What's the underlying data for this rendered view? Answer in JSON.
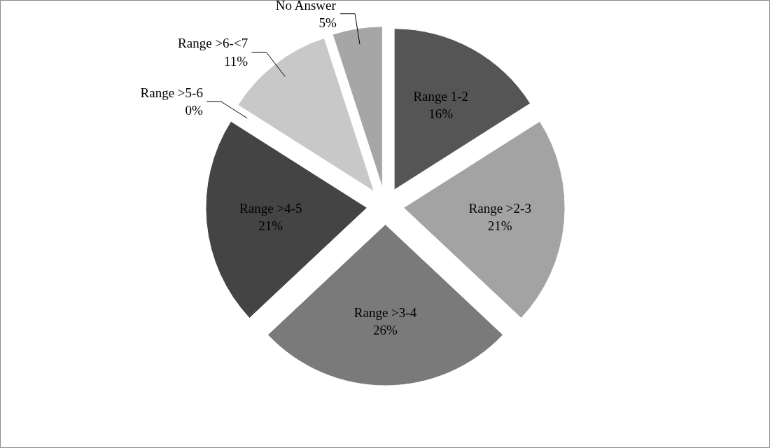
{
  "chart_data": {
    "type": "pie",
    "categories": [
      "Range 1-2",
      "Range >2-3",
      "Range >3-4",
      "Range >4-5",
      "Range >5-6",
      "Range >6-<7",
      "No Answer"
    ],
    "values": [
      16,
      21,
      26,
      21,
      0,
      11,
      5
    ],
    "value_labels": [
      "16%",
      "21%",
      "26%",
      "21%",
      "0%",
      "11%",
      "5%"
    ],
    "colors": [
      "#555555",
      "#a3a3a3",
      "#7a7a7a",
      "#444444",
      "#b0b0b0",
      "#c8c8c8",
      "#a6a6a6"
    ]
  }
}
